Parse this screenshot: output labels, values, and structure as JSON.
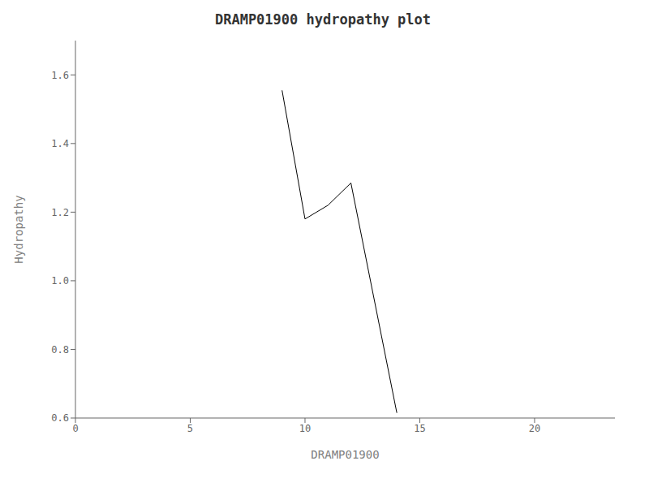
{
  "chart_data": {
    "type": "line",
    "title": "DRAMP01900 hydropathy plot",
    "xlabel": "DRAMP01900",
    "ylabel": "Hydropathy",
    "x": [
      9.0,
      10.0,
      11.0,
      12.0,
      14.0
    ],
    "values": [
      1.555,
      1.18,
      1.22,
      1.285,
      0.615
    ],
    "color": "#000000",
    "xlim": [
      0,
      23.5
    ],
    "ylim": [
      0.6,
      1.7
    ],
    "xticks": [
      0,
      5,
      10,
      15,
      20
    ],
    "yticks": [
      0.6,
      0.8,
      {
        "value": 1.0,
        "label": "1.0"
      },
      1.2,
      1.4,
      1.6
    ],
    "grid": false
  }
}
